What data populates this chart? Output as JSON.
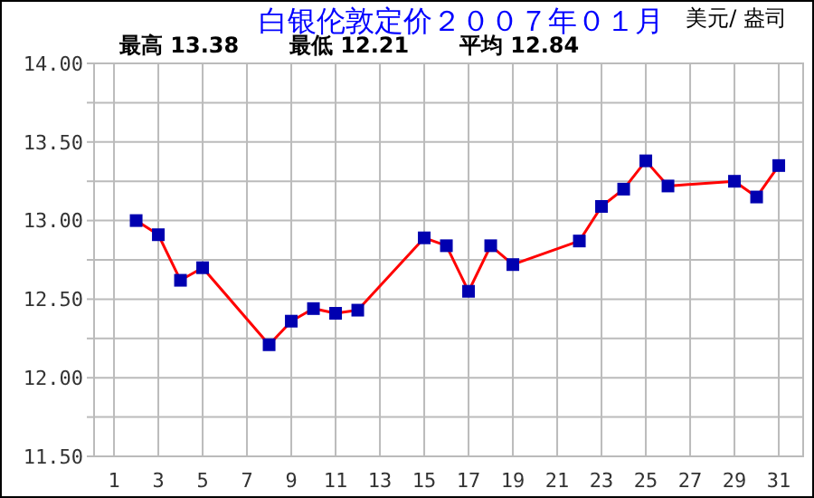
{
  "chart_data": {
    "type": "line",
    "title": "白银伦敦定价２００７年０１月",
    "annotations": [
      "美元/ 盎司",
      "最高 13.38",
      "最低 12.21",
      "平均 12.84"
    ],
    "x": [
      2,
      3,
      4,
      5,
      8,
      9,
      10,
      11,
      12,
      15,
      16,
      17,
      18,
      19,
      22,
      23,
      24,
      25,
      26,
      29,
      30,
      31
    ],
    "series": [
      {
        "color": "#ff0000",
        "values": [
          13.0,
          12.91,
          12.62,
          12.7,
          12.21,
          12.36,
          12.44,
          12.41,
          12.43,
          12.89,
          12.84,
          12.55,
          12.84,
          12.72,
          12.87,
          13.09,
          13.2,
          13.38,
          13.22,
          13.25,
          13.15,
          13.35
        ]
      }
    ],
    "xlim": [
      0.1,
      32.1
    ],
    "xticks": [
      1,
      3,
      5,
      7,
      9,
      11,
      13,
      15,
      17,
      19,
      21,
      23,
      25,
      27,
      29,
      31
    ],
    "ylim": [
      11.5,
      14
    ],
    "yticks": [
      {
        "value": 11.5,
        "label": "11.50"
      },
      {
        "value": 11.75,
        "label": null
      },
      {
        "value": 12,
        "label": "12.00"
      },
      {
        "value": 12.25,
        "label": null
      },
      {
        "value": 12.5,
        "label": "12.50"
      },
      {
        "value": 12.75,
        "label": null
      },
      {
        "value": 13,
        "label": "13.00"
      },
      {
        "value": 13.25,
        "label": null
      },
      {
        "value": 13.5,
        "label": "13.50"
      },
      {
        "value": 13.75,
        "label": null
      },
      {
        "value": 14,
        "label": "14.00"
      }
    ],
    "grid": true,
    "marker": "square",
    "line_style": "solid"
  }
}
